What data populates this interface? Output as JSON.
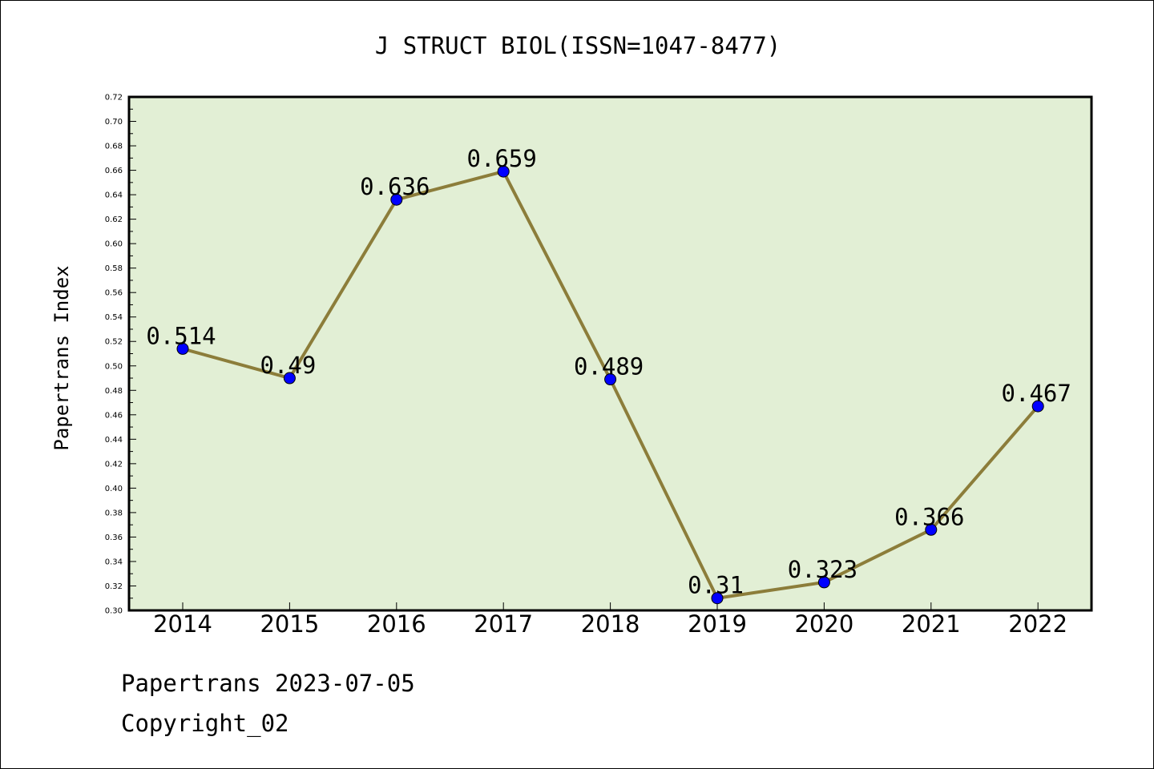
{
  "chart_data": {
    "type": "line",
    "title": "J STRUCT BIOL(ISSN=1047-8477)",
    "ylabel": "Papertrans Index",
    "xlabel": "",
    "categories": [
      "2014",
      "2015",
      "2016",
      "2017",
      "2018",
      "2019",
      "2020",
      "2021",
      "2022"
    ],
    "series": [
      {
        "values": [
          0.514,
          0.49,
          0.636,
          0.659,
          0.489,
          0.31,
          0.323,
          0.366,
          0.467
        ],
        "labels": [
          "0.514",
          "0.49",
          "0.636",
          "0.659",
          "0.489",
          "0.31",
          "0.323",
          "0.366",
          "0.467"
        ]
      }
    ],
    "ylim": [
      0.3,
      0.72
    ],
    "yticks": [
      "0.30",
      "0.32",
      "0.34",
      "0.36",
      "0.38",
      "0.40",
      "0.42",
      "0.44",
      "0.46",
      "0.48",
      "0.50",
      "0.52",
      "0.54",
      "0.56",
      "0.58",
      "0.60",
      "0.62",
      "0.64",
      "0.66",
      "0.68",
      "0.70",
      "0.72"
    ],
    "grid": false,
    "colors": {
      "plot_background": "#e2efd5",
      "line": "#8c7d3a",
      "marker": "#0000ff"
    }
  },
  "footer": {
    "line1": "Papertrans 2023-07-05",
    "line2": "Copyright_02"
  }
}
